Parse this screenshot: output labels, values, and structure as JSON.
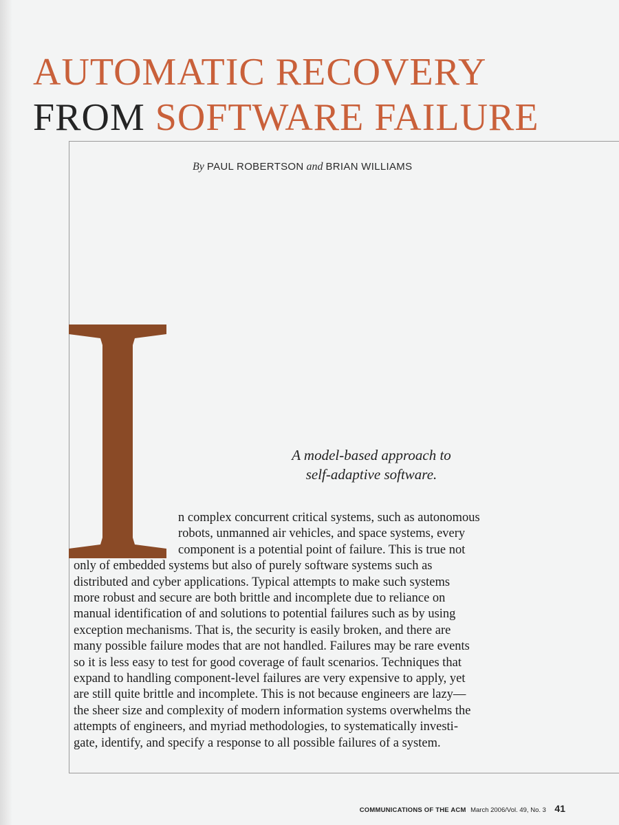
{
  "title": {
    "line1": "AUTOMATIC RECOVERY",
    "line2_dark": "FROM",
    "line2_accent": "SOFTWARE FAILURE"
  },
  "byline": {
    "by": "By",
    "author1": "PAUL ROBERTSON",
    "and": "and",
    "author2": "BRIAN WILLIAMS"
  },
  "dropcap": {
    "letter": "I",
    "color": "#8a4a26"
  },
  "dek": {
    "line1": "A model-based approach to",
    "line2": "self-adaptive software."
  },
  "body": {
    "lines": [
      "n complex concurrent critical systems, such as autonomous",
      "robots, unmanned air vehicles, and space systems, every",
      "component is a potential point of failure. This is true not",
      "only of embedded systems but also of purely software systems such as",
      "distributed and cyber applications. Typical attempts to make such systems",
      "more robust and secure are both brittle and incomplete due to reliance on",
      "manual identification of and solutions to potential failures such as by using",
      "exception mechanisms. That is, the security is easily broken, and there are",
      "many possible failure modes that are not handled. Failures may be rare events",
      "so it is less easy to test for good coverage of fault scenarios. Techniques that",
      "expand to handling component-level failures are very expensive to apply, yet",
      "are still quite brittle and incomplete. This is not because engineers are lazy—",
      "the sheer size and complexity of modern information systems overwhelms the",
      "attempts of engineers, and myriad methodologies, to systematically investi-",
      "gate, identify, and specify a response to all possible failures of a system."
    ]
  },
  "footer": {
    "publication": "COMMUNICATIONS OF THE ACM",
    "issue": "March 2006/Vol. 49, No. 3",
    "page_number": "41"
  },
  "colors": {
    "title_accent": "#c9603a",
    "title_dark": "#242424",
    "background": "#f3f4f4"
  }
}
